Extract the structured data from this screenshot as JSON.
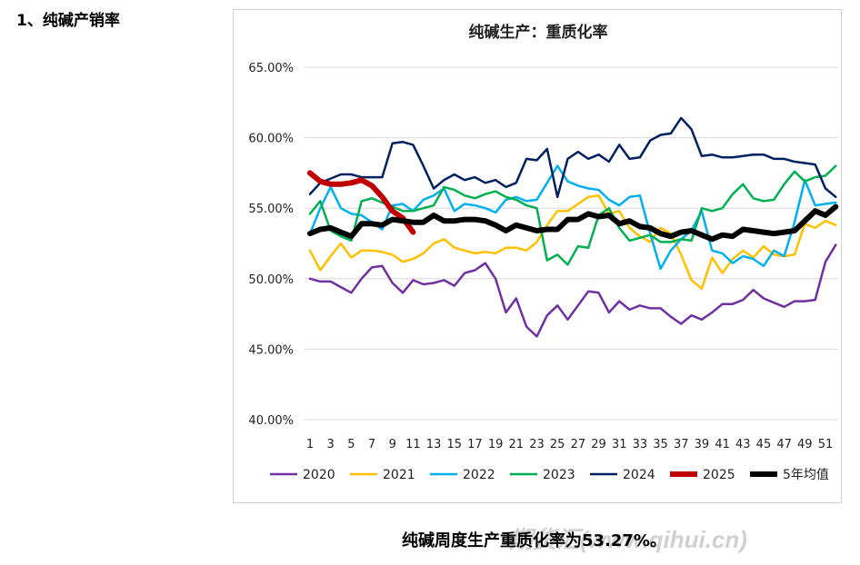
{
  "heading": "1、纯碱产销率",
  "caption": "纯碱周度生产重质化率为53.27%。",
  "watermark": "期货汇(www.qihui.cn)",
  "chart_data": {
    "type": "line",
    "title": "纯碱生产：重质化率",
    "xlabel": "",
    "ylabel": "",
    "ylim": [
      40,
      65
    ],
    "yticks": [
      "40.00%",
      "45.00%",
      "50.00%",
      "55.00%",
      "60.00%",
      "65.00%"
    ],
    "ytick_values": [
      40,
      45,
      50,
      55,
      60,
      65
    ],
    "xticks": [
      "1",
      "3",
      "5",
      "7",
      "9",
      "11",
      "13",
      "15",
      "17",
      "19",
      "21",
      "23",
      "25",
      "27",
      "29",
      "31",
      "33",
      "35",
      "37",
      "39",
      "41",
      "43",
      "45",
      "47",
      "49",
      "51"
    ],
    "xlim": [
      1,
      52
    ],
    "grid": true,
    "legend_position": "bottom",
    "series": [
      {
        "name": "2020",
        "color": "#7030a0",
        "width": 2.5,
        "values": [
          50.0,
          49.8,
          49.8,
          49.4,
          49.0,
          50.0,
          50.8,
          50.9,
          49.7,
          49.0,
          49.9,
          49.6,
          49.7,
          49.9,
          49.5,
          50.4,
          50.6,
          51.1,
          50.0,
          47.6,
          48.6,
          46.6,
          45.9,
          47.4,
          48.1,
          47.1,
          48.1,
          49.1,
          49.0,
          47.6,
          48.4,
          47.8,
          48.1,
          47.9,
          47.9,
          47.3,
          46.8,
          47.4,
          47.1,
          47.6,
          48.2,
          48.2,
          48.5,
          49.2,
          48.6,
          48.3,
          48.0,
          48.4,
          48.4,
          48.5,
          51.2,
          52.4
        ]
      },
      {
        "name": "2021",
        "color": "#ffc000",
        "width": 2.5,
        "values": [
          52.0,
          50.6,
          51.6,
          52.5,
          51.5,
          52.0,
          52.0,
          51.9,
          51.7,
          51.2,
          51.4,
          51.8,
          52.5,
          52.8,
          52.2,
          52.0,
          51.8,
          51.9,
          51.8,
          52.2,
          52.2,
          52.0,
          52.6,
          53.8,
          54.8,
          54.8,
          55.3,
          55.8,
          55.9,
          54.6,
          54.8,
          53.6,
          53.0,
          52.6,
          53.6,
          53.2,
          51.7,
          49.9,
          49.3,
          51.5,
          50.4,
          51.4,
          52.0,
          51.5,
          52.3,
          51.7,
          51.6,
          51.7,
          53.9,
          53.6,
          54.1,
          53.8
        ]
      },
      {
        "name": "2022",
        "color": "#00b0f0",
        "width": 2.5,
        "values": [
          53.2,
          55.0,
          56.5,
          55.0,
          54.6,
          54.5,
          54.0,
          53.5,
          55.2,
          55.3,
          54.8,
          55.6,
          55.9,
          56.4,
          54.8,
          55.3,
          55.2,
          55.0,
          54.7,
          55.6,
          55.8,
          55.5,
          55.6,
          56.8,
          58.0,
          56.9,
          56.6,
          56.4,
          56.3,
          55.6,
          55.2,
          55.8,
          55.9,
          53.2,
          50.7,
          52.0,
          52.8,
          53.4,
          54.8,
          52.0,
          51.8,
          51.1,
          51.6,
          51.4,
          50.9,
          52.0,
          51.6,
          54.0,
          57.0,
          55.2,
          55.3,
          55.4
        ]
      },
      {
        "name": "2023",
        "color": "#00b050",
        "width": 2.5,
        "values": [
          54.6,
          55.5,
          53.4,
          53.0,
          52.7,
          55.5,
          55.7,
          55.4,
          55.1,
          54.8,
          54.8,
          55.0,
          55.2,
          56.5,
          56.3,
          55.9,
          55.7,
          56.0,
          56.2,
          55.8,
          55.6,
          55.2,
          55.0,
          51.3,
          51.7,
          51.0,
          52.3,
          52.2,
          54.5,
          55.0,
          53.6,
          52.7,
          52.9,
          53.1,
          52.6,
          52.6,
          52.8,
          52.7,
          55.0,
          54.8,
          55.0,
          56.0,
          56.7,
          55.7,
          55.5,
          55.6,
          56.7,
          57.6,
          56.9,
          57.2,
          57.3,
          58.0
        ]
      },
      {
        "name": "2024",
        "color": "#002060",
        "width": 2.5,
        "values": [
          56.0,
          56.8,
          57.1,
          57.4,
          57.4,
          57.2,
          57.2,
          57.2,
          59.6,
          59.7,
          59.5,
          58.0,
          56.4,
          57.0,
          57.4,
          57.0,
          57.2,
          56.8,
          57.0,
          56.5,
          56.8,
          58.5,
          58.4,
          59.2,
          55.8,
          58.5,
          59.0,
          58.5,
          58.8,
          58.3,
          59.5,
          58.5,
          58.6,
          59.8,
          60.2,
          60.3,
          61.4,
          60.6,
          58.7,
          58.8,
          58.6,
          58.6,
          58.7,
          58.8,
          58.8,
          58.5,
          58.5,
          58.3,
          58.2,
          58.1,
          56.4,
          55.8
        ]
      },
      {
        "name": "2025",
        "color": "#c00000",
        "width": 6,
        "values": [
          57.5,
          56.9,
          56.7,
          56.7,
          56.8,
          57.0,
          56.6,
          55.8,
          54.8,
          54.3,
          53.3
        ]
      },
      {
        "name": "5年均值",
        "color": "#000000",
        "width": 6,
        "values": [
          53.2,
          53.5,
          53.6,
          53.3,
          53.0,
          53.9,
          53.9,
          53.8,
          54.2,
          54.1,
          54.0,
          54.0,
          54.5,
          54.1,
          54.1,
          54.2,
          54.2,
          54.1,
          53.8,
          53.4,
          53.8,
          53.6,
          53.4,
          53.5,
          53.5,
          54.2,
          54.2,
          54.6,
          54.4,
          54.5,
          53.9,
          54.1,
          53.7,
          53.6,
          53.2,
          53.0,
          53.3,
          53.4,
          53.1,
          52.8,
          53.1,
          53.0,
          53.5,
          53.4,
          53.3,
          53.2,
          53.3,
          53.4,
          54.1,
          54.8,
          54.5,
          55.1
        ]
      }
    ]
  }
}
